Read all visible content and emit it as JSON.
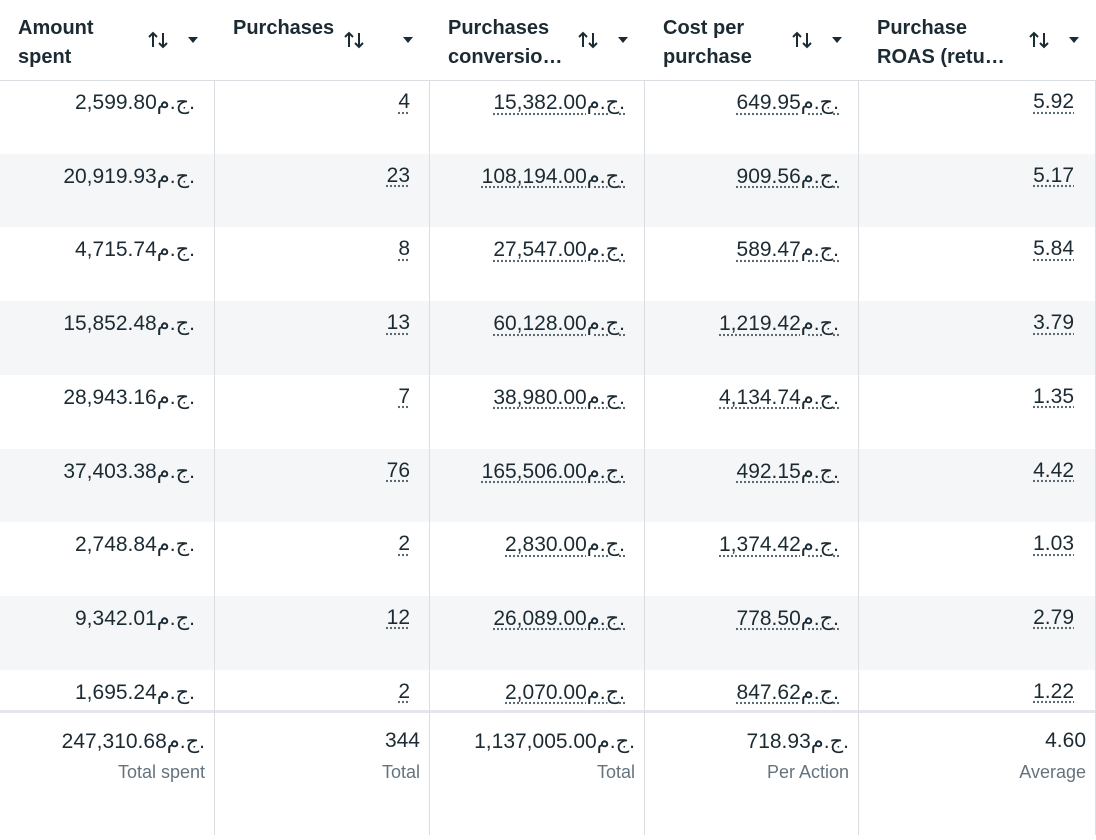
{
  "header": {
    "columns": [
      "Amount spent",
      "Purchases",
      "Purchases conversio…",
      "Cost per purchase",
      "Purchase ROAS (retu…"
    ]
  },
  "table": {
    "rows": [
      [
        "2,599.80ج.م.",
        "4",
        "15,382.00ج.م.",
        "649.95ج.م.",
        "5.92"
      ],
      [
        "20,919.93ج.م.",
        "23",
        "108,194.00ج.م.",
        "909.56ج.م.",
        "5.17"
      ],
      [
        "4,715.74ج.م.",
        "8",
        "27,547.00ج.م.",
        "589.47ج.م.",
        "5.84"
      ],
      [
        "15,852.48ج.م.",
        "13",
        "60,128.00ج.م.",
        "1,219.42ج.م.",
        "3.79"
      ],
      [
        "28,943.16ج.م.",
        "7",
        "38,980.00ج.م.",
        "4,134.74ج.م.",
        "1.35"
      ],
      [
        "37,403.38ج.م.",
        "76",
        "165,506.00ج.م.",
        "492.15ج.م.",
        "4.42"
      ],
      [
        "2,748.84ج.م.",
        "2",
        "2,830.00ج.م.",
        "1,374.42ج.م.",
        "1.03"
      ],
      [
        "9,342.01ج.م.",
        "12",
        "26,089.00ج.م.",
        "778.50ج.م.",
        "2.79"
      ],
      [
        "1,695.24ج.م.",
        "2",
        "2,070.00ج.م.",
        "847.62ج.م.",
        "1.22"
      ]
    ]
  },
  "totals": [
    {
      "value": "247,310.68ج.م.",
      "label": "Total spent"
    },
    {
      "value": "344",
      "label": "Total"
    },
    {
      "value": "1,137,005.00ج.م.",
      "label": "Total"
    },
    {
      "value": "718.93ج.م.",
      "label": "Per Action"
    },
    {
      "value": "4.60",
      "label": "Average"
    }
  ]
}
